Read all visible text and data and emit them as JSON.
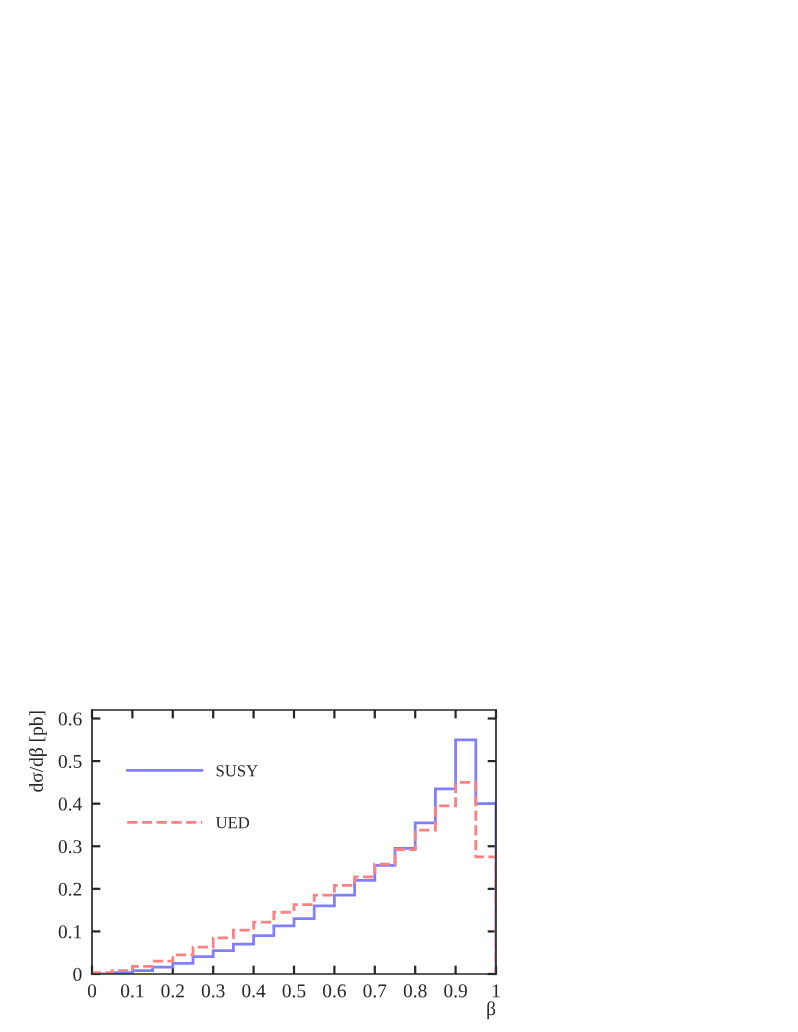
{
  "chart_data": {
    "type": "histogram",
    "xlabel": "β",
    "ylabel": "dσ/dβ [pb]",
    "bins": [
      0,
      0.05,
      0.1,
      0.15,
      0.2,
      0.25,
      0.3,
      0.35,
      0.4,
      0.45,
      0.5,
      0.55,
      0.6,
      0.65,
      0.7,
      0.75,
      0.8,
      0.85,
      0.9,
      0.95,
      1
    ],
    "series": [
      {
        "name": "SUSY",
        "color": "#8080ff",
        "line_style": "solid",
        "values": [
          0,
          0.003,
          0.008,
          0.016,
          0.025,
          0.041,
          0.055,
          0.07,
          0.09,
          0.113,
          0.13,
          0.16,
          0.185,
          0.22,
          0.255,
          0.295,
          0.355,
          0.435,
          0.55,
          0.4
        ]
      },
      {
        "name": "UED",
        "color": "#ff8080",
        "line_style": "dashed",
        "values": [
          0.003,
          0.008,
          0.018,
          0.03,
          0.045,
          0.063,
          0.085,
          0.103,
          0.122,
          0.145,
          0.163,
          0.185,
          0.208,
          0.228,
          0.258,
          0.292,
          0.338,
          0.395,
          0.45,
          0.275
        ]
      }
    ],
    "xlim": [
      0,
      1
    ],
    "ylim": [
      0,
      0.62
    ],
    "xticks": [
      0,
      0.1,
      0.2,
      0.3,
      0.4,
      0.5,
      0.6,
      0.7,
      0.8,
      0.9,
      1
    ],
    "yticks": [
      0,
      0.1,
      0.2,
      0.3,
      0.4,
      0.5,
      0.6
    ],
    "grid": false,
    "legend": "top left"
  }
}
